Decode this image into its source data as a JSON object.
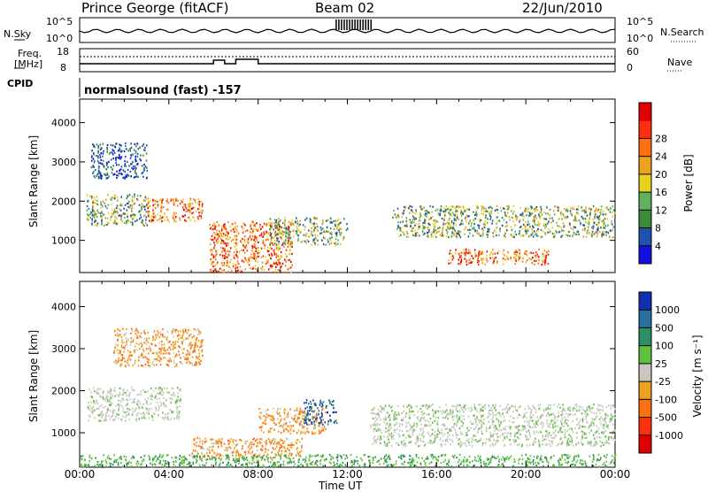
{
  "header": {
    "station": "Prince George (fitACF)",
    "beam": "Beam 02",
    "date": "22/Jun/2010"
  },
  "left_labels": {
    "nsky": "N.Sky",
    "nsky_ticks": [
      "10^5",
      "10^0"
    ],
    "freq": "Freq.",
    "freq_unit": "[MHz]",
    "freq_ticks": [
      "18",
      "8"
    ],
    "cpid": "CPID"
  },
  "right_labels": {
    "nsearch": "N.Search",
    "nsearch_ticks": [
      "10^5",
      "10^0"
    ],
    "nave": "Nave",
    "nave_ticks": [
      "60",
      "0"
    ]
  },
  "cpid_text": "normalsound (fast) -157",
  "time_axis": {
    "label": "Time UT",
    "ticks": [
      "00:00",
      "04:00",
      "08:00",
      "12:00",
      "16:00",
      "20:00",
      "00:00"
    ]
  },
  "chart_data": [
    {
      "type": "heatmap",
      "name": "power",
      "ylabel": "Slant Range [km]",
      "ylim": [
        180,
        4600
      ],
      "yticks": [
        "1000",
        "2000",
        "3000",
        "4000"
      ],
      "colorbar": {
        "label": "Power [dB]",
        "ticks": [
          "4",
          "8",
          "12",
          "16",
          "20",
          "24",
          "28"
        ],
        "colors": [
          "#1010e0",
          "#2050b0",
          "#3a8a3a",
          "#60b060",
          "#e8d020",
          "#f0a020",
          "#ff7010",
          "#ff3010",
          "#e00000"
        ]
      },
      "blobs": [
        {
          "t": [
            0.3,
            3.0
          ],
          "r": [
            1400,
            2200
          ],
          "level": "mid"
        },
        {
          "t": [
            3.0,
            5.5
          ],
          "r": [
            1500,
            2100
          ],
          "level": "high"
        },
        {
          "t": [
            0.5,
            3.0
          ],
          "r": [
            2600,
            3500
          ],
          "level": "low"
        },
        {
          "t": [
            5.8,
            9.5
          ],
          "r": [
            200,
            1500
          ],
          "level": "high"
        },
        {
          "t": [
            8.5,
            12.0
          ],
          "r": [
            900,
            1600
          ],
          "level": "mid"
        },
        {
          "t": [
            14.0,
            24.0
          ],
          "r": [
            1100,
            1900
          ],
          "level": "mid"
        },
        {
          "t": [
            16.5,
            21.0
          ],
          "r": [
            400,
            800
          ],
          "level": "high"
        }
      ]
    },
    {
      "type": "heatmap",
      "name": "velocity",
      "ylabel": "Slant Range [km]",
      "ylim": [
        180,
        4600
      ],
      "yticks": [
        "1000",
        "2000",
        "3000",
        "4000"
      ],
      "colorbar": {
        "label": "Velocity [m s⁻¹]",
        "ticks": [
          "1000",
          "500",
          "100",
          "25",
          "-25",
          "-100",
          "-500",
          "-1000"
        ],
        "colors": [
          "#1030b0",
          "#2a70a0",
          "#2a9060",
          "#60c040",
          "#c8c8c0",
          "#f0a020",
          "#ff7010",
          "#ff3010",
          "#e00000"
        ]
      },
      "blobs": [
        {
          "t": [
            0.3,
            4.5
          ],
          "r": [
            1300,
            2100
          ],
          "vel": "gray"
        },
        {
          "t": [
            1.5,
            5.5
          ],
          "r": [
            2600,
            3500
          ],
          "vel": "orange"
        },
        {
          "t": [
            5.0,
            10.0
          ],
          "r": [
            400,
            900
          ],
          "vel": "orange"
        },
        {
          "t": [
            8.0,
            11.0
          ],
          "r": [
            1000,
            1600
          ],
          "vel": "orange"
        },
        {
          "t": [
            10.0,
            11.5
          ],
          "r": [
            1200,
            1800
          ],
          "vel": "blue"
        },
        {
          "t": [
            13.0,
            24.0
          ],
          "r": [
            700,
            1700
          ],
          "vel": "gray"
        },
        {
          "t": [
            0.0,
            24.0
          ],
          "r": [
            200,
            500
          ],
          "vel": "green"
        }
      ]
    }
  ]
}
